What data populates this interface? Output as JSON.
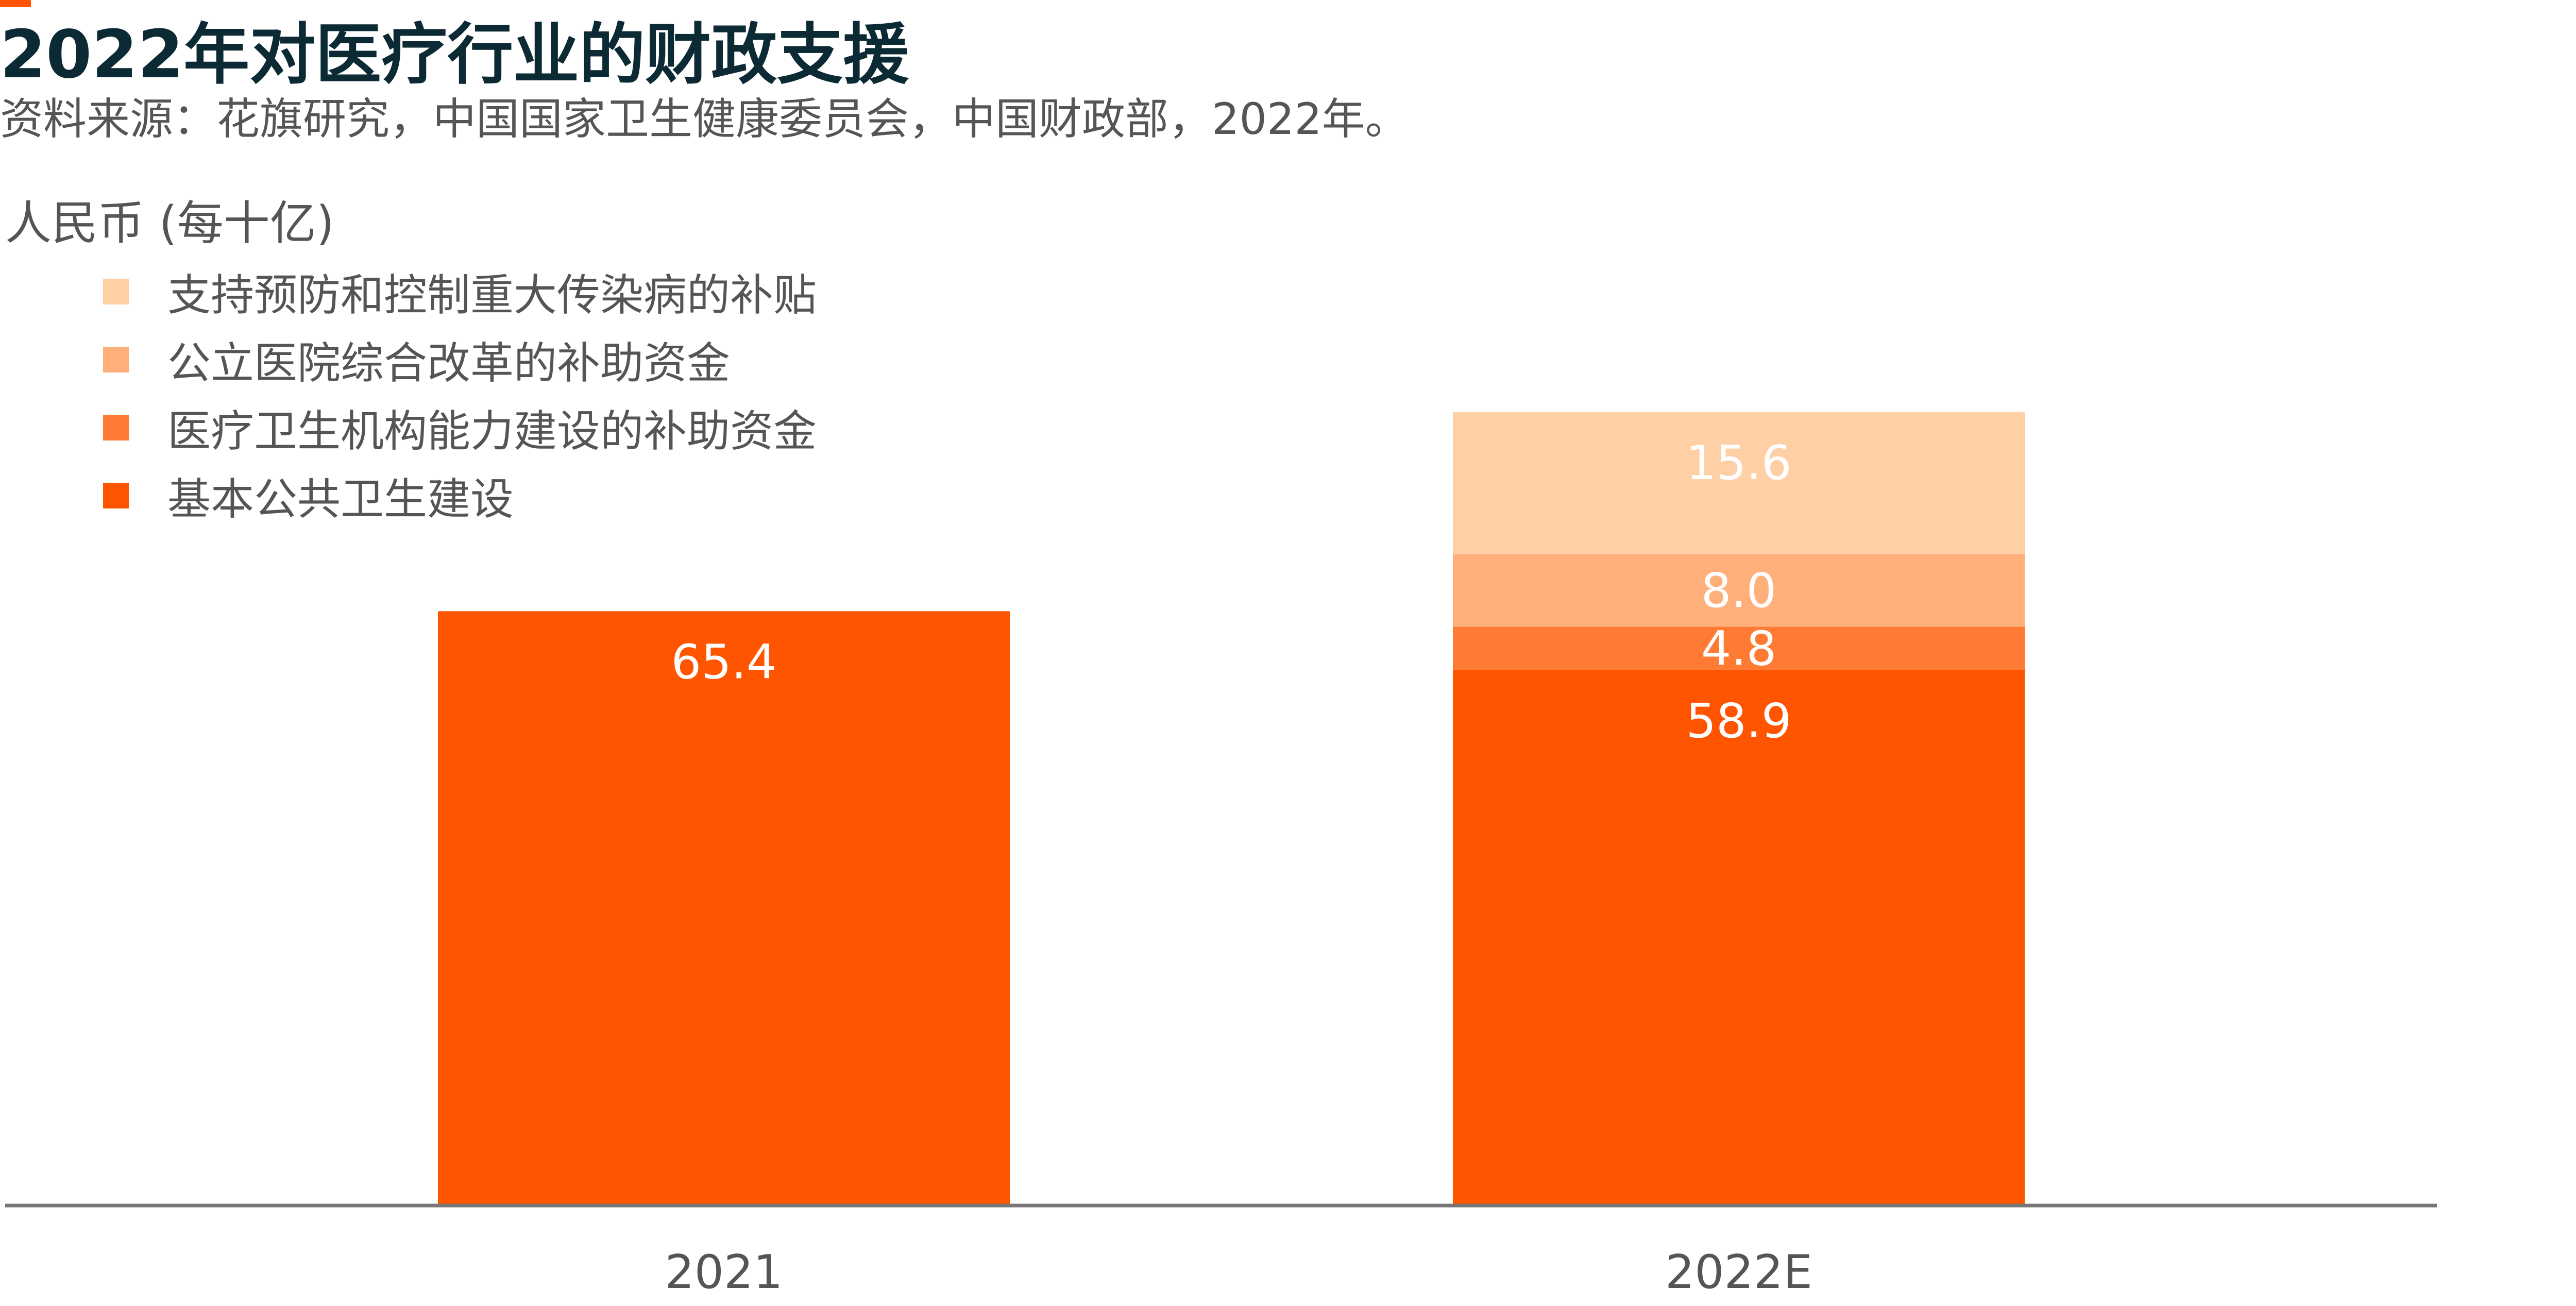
{
  "header": {
    "title": "2022年对医疗行业的财政支援",
    "subtitle": "资料来源：花旗研究，中国国家卫生健康委员会，中国财政部，2022年。",
    "unit_label": "人民币 (每十亿)"
  },
  "colors": {
    "accent": "#ff5500",
    "title": "#0b2a33",
    "text": "#555555",
    "axis": "#777777",
    "value_label": "#ffffff"
  },
  "chart_data": {
    "type": "bar",
    "stacked": true,
    "categories": [
      "2021",
      "2022E"
    ],
    "series": [
      {
        "name": "基本公共卫生建设",
        "color": "#ff5500",
        "values": [
          65.4,
          58.9
        ]
      },
      {
        "name": "医疗卫生机构能力建设的补助资金",
        "color": "#ff7a33",
        "values": [
          null,
          4.8
        ]
      },
      {
        "name": "公立医院综合改革的补助资金",
        "color": "#ffb07a",
        "values": [
          null,
          8.0
        ]
      },
      {
        "name": "支持预防和控制重大传染病的补贴",
        "color": "#ffcfa6",
        "values": [
          null,
          15.6
        ]
      }
    ],
    "value_labels": [
      [
        "65.4",
        "58.9"
      ],
      [
        null,
        "4.8"
      ],
      [
        null,
        "8.0"
      ],
      [
        null,
        "15.6"
      ]
    ],
    "legend_order": [
      3,
      2,
      1,
      0
    ],
    "legend_position": "top-left",
    "ylim": [
      0,
      87.3
    ],
    "grid": false,
    "xlabel": "",
    "ylabel": ""
  }
}
